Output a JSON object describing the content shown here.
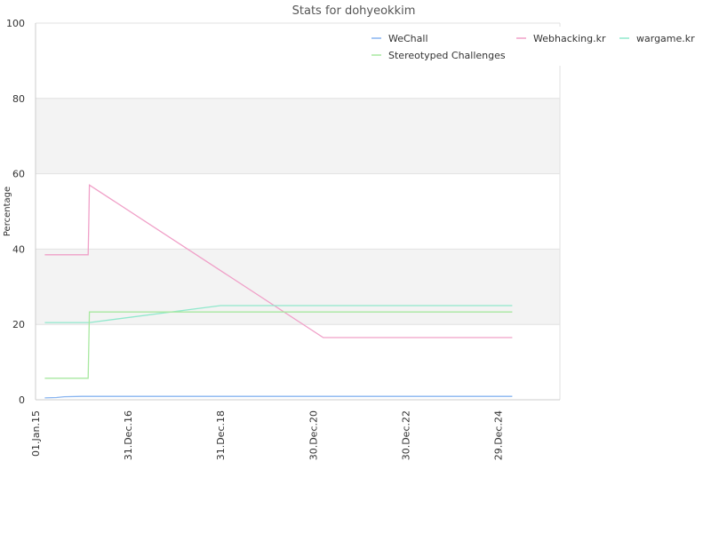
{
  "chart_data": {
    "type": "line",
    "title": "Stats for dohyeokkim",
    "xlabel": "",
    "ylabel": "Percentage",
    "ylim": [
      0,
      100
    ],
    "yticks": [
      "0",
      "20",
      "40",
      "60",
      "80",
      "100"
    ],
    "xlim": [
      "2015-01-01",
      "2026-05-01"
    ],
    "xticks": [
      {
        "label": "01.Jan.15",
        "date": "2015-01-01"
      },
      {
        "label": "31.Dec.16",
        "date": "2016-12-31"
      },
      {
        "label": "31.Dec.18",
        "date": "2018-12-31"
      },
      {
        "label": "30.Dec.20",
        "date": "2020-12-30"
      },
      {
        "label": "30.Dec.22",
        "date": "2022-12-30"
      },
      {
        "label": "29.Dec.24",
        "date": "2024-12-29"
      }
    ],
    "grid": true,
    "legend_position": "top-right",
    "series": [
      {
        "name": "WeChall",
        "color": "#88b4f0",
        "points": [
          [
            "2015-03-15",
            0.5
          ],
          [
            "2015-06-15",
            0.6
          ],
          [
            "2015-08-15",
            0.8
          ],
          [
            "2016-01-01",
            0.9
          ],
          [
            "2025-04-20",
            0.9
          ]
        ]
      },
      {
        "name": "Webhacking.kr",
        "color": "#f0a0c8",
        "points": [
          [
            "2015-03-15",
            38.5
          ],
          [
            "2016-02-20",
            38.5
          ],
          [
            "2016-02-25",
            47
          ],
          [
            "2016-03-01",
            57
          ],
          [
            "2021-03-20",
            16.5
          ],
          [
            "2025-04-20",
            16.5
          ]
        ]
      },
      {
        "name": "wargame.kr",
        "color": "#90e8cc",
        "points": [
          [
            "2015-03-15",
            20.5
          ],
          [
            "2016-03-01",
            20.5
          ],
          [
            "2018-12-31",
            25
          ],
          [
            "2025-04-20",
            25
          ]
        ]
      },
      {
        "name": "Stereotyped Challenges",
        "color": "#a8e8a0",
        "points": [
          [
            "2015-03-15",
            5.7
          ],
          [
            "2016-02-20",
            5.7
          ],
          [
            "2016-03-01",
            23.3
          ],
          [
            "2025-04-20",
            23.3
          ]
        ]
      }
    ]
  }
}
